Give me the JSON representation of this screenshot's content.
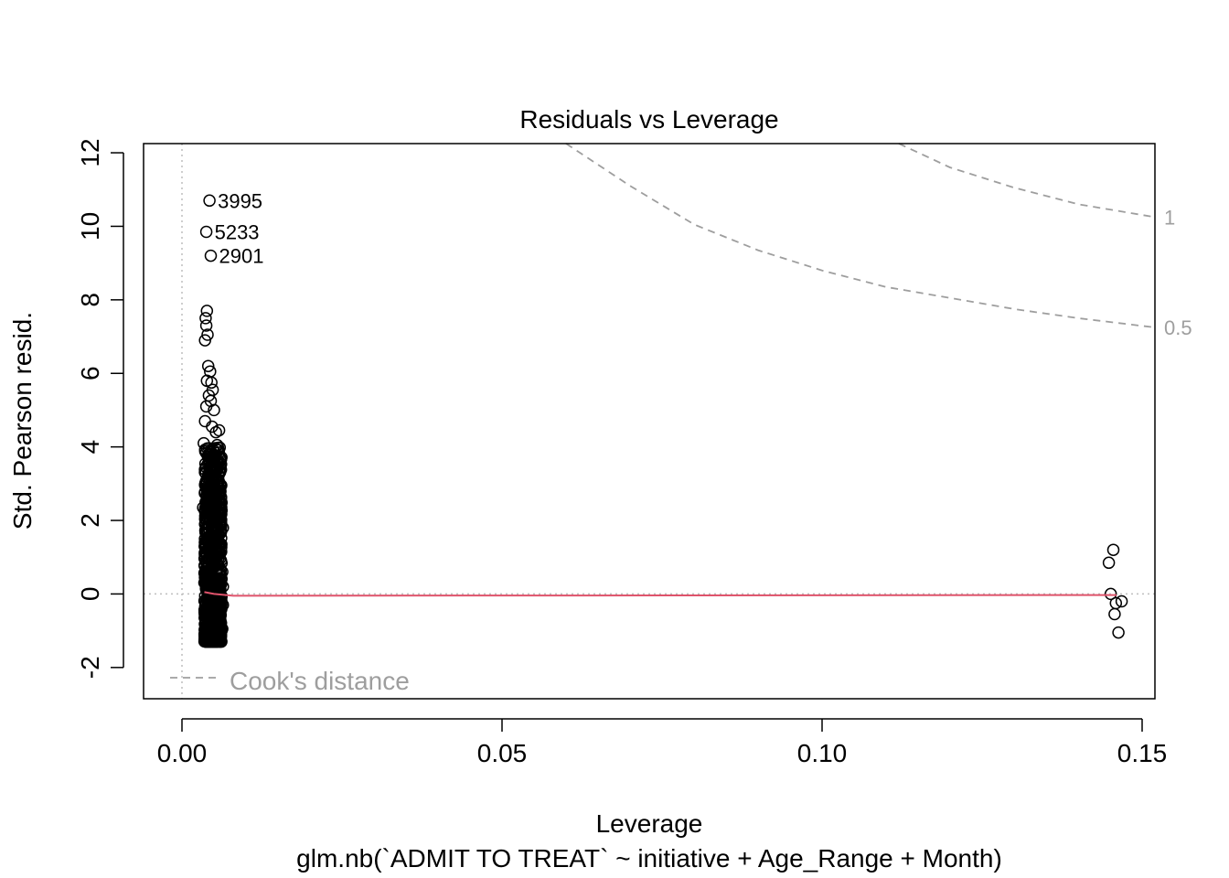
{
  "chart_data": {
    "type": "scatter",
    "title": "Residuals vs Leverage",
    "xlabel": "Leverage",
    "ylabel": "Std. Pearson resid.",
    "subtitle": "glm.nb(`ADMIT TO TREAT` ~ initiative + Age_Range + Month)",
    "xlim": [
      -0.006,
      0.152
    ],
    "ylim": [
      -2.85,
      12.25
    ],
    "x_ticks": [
      "0.00",
      "0.05",
      "0.10",
      "0.15"
    ],
    "x_tick_values": [
      0.0,
      0.05,
      0.1,
      0.15
    ],
    "y_ticks": [
      "-2",
      "0",
      "2",
      "4",
      "6",
      "8",
      "10",
      "12"
    ],
    "y_tick_values": [
      -2,
      0,
      2,
      4,
      6,
      8,
      10,
      12
    ],
    "legend": {
      "label": "Cook's distance",
      "position": "bottom-left"
    },
    "cooks_contours": [
      {
        "label": "1",
        "level": 1,
        "points": [
          [
            0.112,
            12.25
          ],
          [
            0.12,
            11.6
          ],
          [
            0.13,
            11.05
          ],
          [
            0.14,
            10.6
          ],
          [
            0.152,
            10.25
          ]
        ]
      },
      {
        "label": "0.5",
        "level": 0.5,
        "points": [
          [
            0.06,
            12.25
          ],
          [
            0.07,
            11.1
          ],
          [
            0.08,
            10.05
          ],
          [
            0.09,
            9.35
          ],
          [
            0.1,
            8.8
          ],
          [
            0.11,
            8.35
          ],
          [
            0.12,
            8.05
          ],
          [
            0.13,
            7.75
          ],
          [
            0.14,
            7.5
          ],
          [
            0.152,
            7.25
          ]
        ]
      }
    ],
    "labeled_points": [
      {
        "label": "3995",
        "x": 0.0043,
        "y": 10.7
      },
      {
        "label": "5233",
        "x": 0.0038,
        "y": 9.85
      },
      {
        "label": "2901",
        "x": 0.0045,
        "y": 9.2
      }
    ],
    "scatter_points": [
      [
        0.0039,
        7.7
      ],
      [
        0.0037,
        7.5
      ],
      [
        0.0038,
        7.3
      ],
      [
        0.0036,
        6.9
      ],
      [
        0.004,
        7.05
      ],
      [
        0.0041,
        6.2
      ],
      [
        0.0044,
        6.05
      ],
      [
        0.0039,
        5.8
      ],
      [
        0.0046,
        5.75
      ],
      [
        0.0048,
        5.55
      ],
      [
        0.0042,
        5.4
      ],
      [
        0.0045,
        5.25
      ],
      [
        0.0038,
        5.1
      ],
      [
        0.005,
        5.0
      ],
      [
        0.0036,
        4.7
      ],
      [
        0.0047,
        4.55
      ],
      [
        0.0053,
        4.4
      ],
      [
        0.0058,
        4.45
      ],
      [
        0.0034,
        4.1
      ],
      [
        0.0055,
        4.05
      ],
      [
        0.0056,
        3.4
      ],
      [
        0.0059,
        3.0
      ],
      [
        0.0033,
        2.35
      ],
      [
        0.0061,
        2.6
      ],
      [
        0.0064,
        1.8
      ],
      [
        0.0063,
        0.6
      ],
      [
        0.0064,
        0.2
      ],
      [
        0.0064,
        -0.3
      ],
      [
        0.0063,
        -0.95
      ],
      [
        0.1455,
        1.2
      ],
      [
        0.1448,
        0.85
      ],
      [
        0.1451,
        0.0
      ],
      [
        0.1459,
        -0.25
      ],
      [
        0.1468,
        -0.2
      ],
      [
        0.1457,
        -0.55
      ],
      [
        0.1463,
        -1.05
      ]
    ],
    "dense_cluster": {
      "x_range": [
        0.0035,
        0.0062
      ],
      "y_range": [
        -1.3,
        4.0
      ]
    },
    "smooth_line": [
      [
        0.0035,
        0.05
      ],
      [
        0.005,
        0.0
      ],
      [
        0.008,
        -0.05
      ],
      [
        0.076,
        -0.04
      ],
      [
        0.146,
        -0.03
      ]
    ],
    "colors": {
      "points": "#000000",
      "smooth": "#DF536B",
      "cooks": "#9E9E9E",
      "ref_lines": "#BEBEBE"
    }
  }
}
